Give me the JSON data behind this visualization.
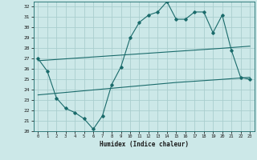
{
  "xlabel": "Humidex (Indice chaleur)",
  "bg_color": "#cce8e8",
  "grid_color": "#aacece",
  "line_color": "#1a6b6b",
  "xlim": [
    -0.5,
    23.5
  ],
  "ylim": [
    20,
    32.5
  ],
  "xticks": [
    0,
    1,
    2,
    3,
    4,
    5,
    6,
    7,
    8,
    9,
    10,
    11,
    12,
    13,
    14,
    15,
    16,
    17,
    18,
    19,
    20,
    21,
    22,
    23
  ],
  "yticks": [
    20,
    21,
    22,
    23,
    24,
    25,
    26,
    27,
    28,
    29,
    30,
    31,
    32
  ],
  "series1_x": [
    0,
    1,
    2,
    3,
    4,
    5,
    6,
    7,
    8,
    9,
    10,
    11,
    12,
    13,
    14,
    15,
    16,
    17,
    18,
    19,
    20,
    21,
    22,
    23
  ],
  "series1_y": [
    27.0,
    25.8,
    23.2,
    22.2,
    21.8,
    21.2,
    20.2,
    21.5,
    24.5,
    26.2,
    29.0,
    30.5,
    31.2,
    31.5,
    32.5,
    30.8,
    30.8,
    31.5,
    31.5,
    29.5,
    31.2,
    27.8,
    25.2,
    25.0
  ],
  "series2_x": [
    0,
    5,
    10,
    15,
    20,
    23
  ],
  "series2_y": [
    26.8,
    27.1,
    27.4,
    27.7,
    28.0,
    28.2
  ],
  "series3_x": [
    0,
    5,
    10,
    15,
    20,
    23
  ],
  "series3_y": [
    23.5,
    23.9,
    24.3,
    24.7,
    25.0,
    25.2
  ]
}
